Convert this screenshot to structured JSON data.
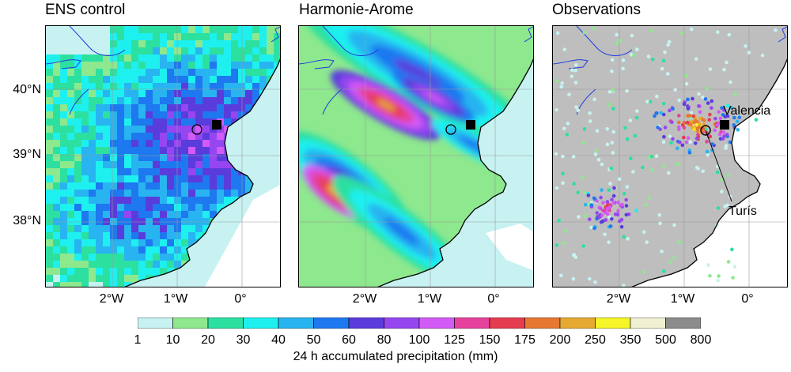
{
  "panels": [
    {
      "id": "ens",
      "title": "ENS control"
    },
    {
      "id": "harm",
      "title": "Harmonie-Arome"
    },
    {
      "id": "obs",
      "title": "Observations"
    }
  ],
  "lat_labels": [
    "40°N",
    "39°N",
    "38°N"
  ],
  "lon_labels": [
    "2°W",
    "1°W",
    "0°"
  ],
  "annotations": {
    "valencia": "Valencia",
    "turis": "Turís"
  },
  "colorbar": {
    "label": "24 h accumulated precipitation (mm)",
    "ticks": [
      "1",
      "10",
      "20",
      "30",
      "40",
      "50",
      "60",
      "80",
      "100",
      "125",
      "150",
      "175",
      "200",
      "250",
      "350",
      "500",
      "800"
    ],
    "colors": [
      "#c8f2f2",
      "#8ee88e",
      "#2ce0a0",
      "#1ef0f0",
      "#28b4f0",
      "#1e78f0",
      "#5a3cdc",
      "#9646f0",
      "#d25af5",
      "#e6419b",
      "#e63c50",
      "#e67832",
      "#e6aa32",
      "#f5f528",
      "#f0f0d2",
      "#8c8c8c"
    ]
  },
  "colors": {
    "land_obs": "#bebebe",
    "coast": "#000000",
    "rivers": "#1e3cdc"
  }
}
